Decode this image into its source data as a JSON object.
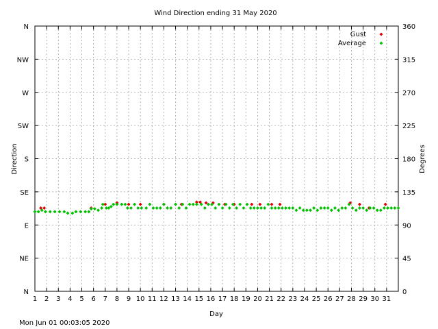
{
  "chart_data": {
    "type": "scatter",
    "title": "Wind Direction ending 31 May 2020",
    "xlabel": "Day",
    "ylabel_left": "Direction",
    "ylabel_right": "Degrees",
    "xlim": [
      1,
      32
    ],
    "ylim": [
      0,
      360
    ],
    "x_ticks": [
      "1",
      "2",
      "3",
      "4",
      "5",
      "6",
      "7",
      "8",
      "9",
      "10",
      "11",
      "12",
      "13",
      "14",
      "15",
      "16",
      "17",
      "18",
      "19",
      "20",
      "21",
      "22",
      "23",
      "24",
      "25",
      "26",
      "27",
      "28",
      "29",
      "30",
      "31"
    ],
    "y_ticks_left": [
      {
        "value": 0,
        "label": "N"
      },
      {
        "value": 45,
        "label": "NE"
      },
      {
        "value": 90,
        "label": "E"
      },
      {
        "value": 135,
        "label": "SE"
      },
      {
        "value": 180,
        "label": "S"
      },
      {
        "value": 225,
        "label": "SW"
      },
      {
        "value": 270,
        "label": "W"
      },
      {
        "value": 315,
        "label": "NW"
      },
      {
        "value": 360,
        "label": "N"
      }
    ],
    "y_ticks_right": [
      {
        "value": 0,
        "label": "0"
      },
      {
        "value": 45,
        "label": "45"
      },
      {
        "value": 90,
        "label": "90"
      },
      {
        "value": 135,
        "label": "135"
      },
      {
        "value": 180,
        "label": "180"
      },
      {
        "value": 225,
        "label": "225"
      },
      {
        "value": 270,
        "label": "270"
      },
      {
        "value": 315,
        "label": "315"
      },
      {
        "value": 360,
        "label": "360"
      }
    ],
    "grid": true,
    "legend_position": "top-right",
    "series": [
      {
        "name": "Gust",
        "color": "#e00000",
        "points": [
          [
            1.5,
            113
          ],
          [
            1.8,
            113
          ],
          [
            5.8,
            113
          ],
          [
            7.0,
            118
          ],
          [
            8.0,
            120
          ],
          [
            9.0,
            118
          ],
          [
            10.0,
            118
          ],
          [
            12.0,
            118
          ],
          [
            13.5,
            118
          ],
          [
            14.8,
            121
          ],
          [
            15.1,
            121
          ],
          [
            15.6,
            120
          ],
          [
            16.2,
            120
          ],
          [
            17.2,
            118
          ],
          [
            18.0,
            118
          ],
          [
            19.5,
            118
          ],
          [
            20.2,
            118
          ],
          [
            21.2,
            118
          ],
          [
            21.9,
            118
          ],
          [
            27.9,
            120
          ],
          [
            28.7,
            118
          ],
          [
            29.5,
            113
          ],
          [
            30.9,
            118
          ]
        ]
      },
      {
        "name": "Average",
        "color": "#00c000",
        "points": [
          [
            1.0,
            108
          ],
          [
            1.3,
            108
          ],
          [
            1.6,
            110
          ],
          [
            1.9,
            108
          ],
          [
            2.3,
            108
          ],
          [
            2.7,
            108
          ],
          [
            3.1,
            108
          ],
          [
            3.5,
            108
          ],
          [
            3.8,
            106
          ],
          [
            4.2,
            106
          ],
          [
            4.5,
            108
          ],
          [
            4.9,
            108
          ],
          [
            5.3,
            108
          ],
          [
            5.6,
            108
          ],
          [
            5.8,
            112
          ],
          [
            6.1,
            112
          ],
          [
            6.4,
            110
          ],
          [
            6.7,
            113
          ],
          [
            6.8,
            118
          ],
          [
            7.1,
            113
          ],
          [
            7.3,
            113
          ],
          [
            7.5,
            115
          ],
          [
            7.7,
            118
          ],
          [
            8.0,
            118
          ],
          [
            8.4,
            118
          ],
          [
            8.7,
            118
          ],
          [
            8.9,
            113
          ],
          [
            9.2,
            113
          ],
          [
            9.5,
            118
          ],
          [
            9.8,
            113
          ],
          [
            10.1,
            113
          ],
          [
            10.5,
            113
          ],
          [
            10.8,
            118
          ],
          [
            11.1,
            113
          ],
          [
            11.4,
            113
          ],
          [
            11.7,
            113
          ],
          [
            12.0,
            118
          ],
          [
            12.3,
            113
          ],
          [
            12.6,
            113
          ],
          [
            13.0,
            118
          ],
          [
            13.3,
            113
          ],
          [
            13.6,
            118
          ],
          [
            13.9,
            113
          ],
          [
            14.2,
            118
          ],
          [
            14.5,
            118
          ],
          [
            14.8,
            118
          ],
          [
            15.2,
            118
          ],
          [
            15.5,
            113
          ],
          [
            15.8,
            118
          ],
          [
            16.1,
            118
          ],
          [
            16.4,
            113
          ],
          [
            16.7,
            118
          ],
          [
            17.0,
            113
          ],
          [
            17.3,
            118
          ],
          [
            17.6,
            113
          ],
          [
            17.9,
            118
          ],
          [
            18.2,
            113
          ],
          [
            18.5,
            118
          ],
          [
            18.8,
            113
          ],
          [
            19.1,
            118
          ],
          [
            19.4,
            113
          ],
          [
            19.7,
            113
          ],
          [
            20.0,
            113
          ],
          [
            20.3,
            113
          ],
          [
            20.6,
            113
          ],
          [
            20.9,
            118
          ],
          [
            21.2,
            113
          ],
          [
            21.5,
            113
          ],
          [
            21.8,
            113
          ],
          [
            22.1,
            113
          ],
          [
            22.4,
            113
          ],
          [
            22.7,
            113
          ],
          [
            23.0,
            113
          ],
          [
            23.3,
            110
          ],
          [
            23.6,
            113
          ],
          [
            23.9,
            110
          ],
          [
            24.2,
            110
          ],
          [
            24.5,
            110
          ],
          [
            24.8,
            113
          ],
          [
            25.1,
            110
          ],
          [
            25.4,
            113
          ],
          [
            25.7,
            113
          ],
          [
            26.0,
            113
          ],
          [
            26.3,
            110
          ],
          [
            26.6,
            113
          ],
          [
            26.9,
            110
          ],
          [
            27.2,
            113
          ],
          [
            27.5,
            113
          ],
          [
            27.8,
            118
          ],
          [
            28.1,
            113
          ],
          [
            28.4,
            110
          ],
          [
            28.7,
            113
          ],
          [
            29.0,
            113
          ],
          [
            29.3,
            110
          ],
          [
            29.6,
            113
          ],
          [
            29.9,
            113
          ],
          [
            30.2,
            110
          ],
          [
            30.5,
            110
          ],
          [
            30.8,
            113
          ],
          [
            31.1,
            113
          ],
          [
            31.4,
            113
          ],
          [
            31.7,
            113
          ],
          [
            32.0,
            113
          ]
        ]
      }
    ]
  },
  "footer_timestamp": "Mon Jun 01 00:03:05 2020"
}
